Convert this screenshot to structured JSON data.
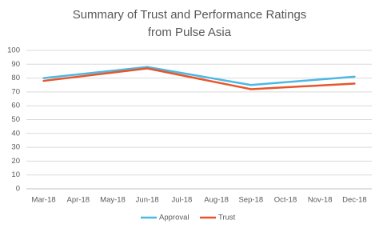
{
  "chart_data": {
    "type": "line",
    "title": "Summary of Trust and Performance Ratings from Pulse Asia",
    "categories": [
      "Mar-18",
      "Apr-18",
      "May-18",
      "Jun-18",
      "Jul-18",
      "Aug-18",
      "Sep-18",
      "Oct-18",
      "Nov-18",
      "Dec-18"
    ],
    "series": [
      {
        "name": "Approval",
        "color": "#4db8e3",
        "values": [
          80,
          null,
          null,
          88,
          null,
          null,
          75,
          null,
          null,
          81
        ]
      },
      {
        "name": "Trust",
        "color": "#e8552a",
        "values": [
          78,
          null,
          null,
          87,
          null,
          null,
          72,
          null,
          null,
          76
        ]
      }
    ],
    "connect_gaps": true,
    "ylim": [
      0,
      100
    ],
    "yticks": [
      0,
      10,
      20,
      30,
      40,
      50,
      60,
      70,
      80,
      90,
      100
    ],
    "grid": true,
    "legend": "bottom"
  }
}
